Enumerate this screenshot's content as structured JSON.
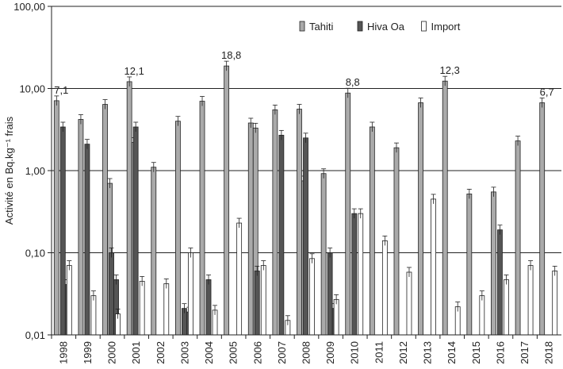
{
  "chart_data": {
    "type": "bar",
    "scale": "log",
    "ylabel": "Activité en Bq.kg⁻¹ frais",
    "ylim": [
      0.01,
      100
    ],
    "yticks": [
      "0,01",
      "0,10",
      "1,00",
      "10,00",
      "100,00"
    ],
    "grid": "horizontal",
    "legend_position": "top-right",
    "categories": [
      "1998",
      "1999",
      "2000",
      "2001",
      "2002",
      "2003",
      "2004",
      "2005",
      "2006",
      "2007",
      "2008",
      "2009",
      "2010",
      "2011",
      "2012",
      "2013",
      "2014",
      "2015",
      "2016",
      "2017",
      "2018"
    ],
    "series": [
      {
        "name": "Tahiti",
        "color": "#aaaaaa",
        "values": [
          7.1,
          4.2,
          6.4,
          12.1,
          1.1,
          4.0,
          7.0,
          18.8,
          3.8,
          5.5,
          5.6,
          0.92,
          8.8,
          3.4,
          1.9,
          6.7,
          12.3,
          0.52,
          0.55,
          2.3,
          6.7
        ],
        "extra": {
          "2000": 0.7,
          "2001": 2.2,
          "2006": 3.3,
          "2008": 0.75
        }
      },
      {
        "name": "Hiva Oa",
        "color": "#555555",
        "values": [
          3.4,
          2.1,
          0.1,
          3.4,
          null,
          0.021,
          0.047,
          null,
          0.06,
          2.7,
          2.5,
          0.1,
          0.3,
          null,
          null,
          null,
          null,
          null,
          0.19,
          null,
          null
        ],
        "extra": {
          "1998": 0.041,
          "2000": 0.047,
          "2003": 0.019,
          "2009": 0.021
        }
      },
      {
        "name": "Import",
        "color": "#ffffff",
        "values": [
          0.07,
          0.03,
          0.018,
          0.045,
          0.042,
          0.1,
          0.02,
          0.23,
          0.07,
          0.015,
          0.085,
          0.027,
          0.3,
          0.14,
          0.058,
          0.45,
          0.022,
          0.03,
          0.047,
          0.07,
          0.06
        ]
      }
    ],
    "annotations": [
      {
        "category": "1998",
        "text": "7,1"
      },
      {
        "category": "2001",
        "text": "12,1"
      },
      {
        "category": "2005",
        "text": "18,8"
      },
      {
        "category": "2010",
        "text": "8,8"
      },
      {
        "category": "2014",
        "text": "12,3"
      },
      {
        "category": "2018",
        "text": "6,7"
      }
    ]
  }
}
